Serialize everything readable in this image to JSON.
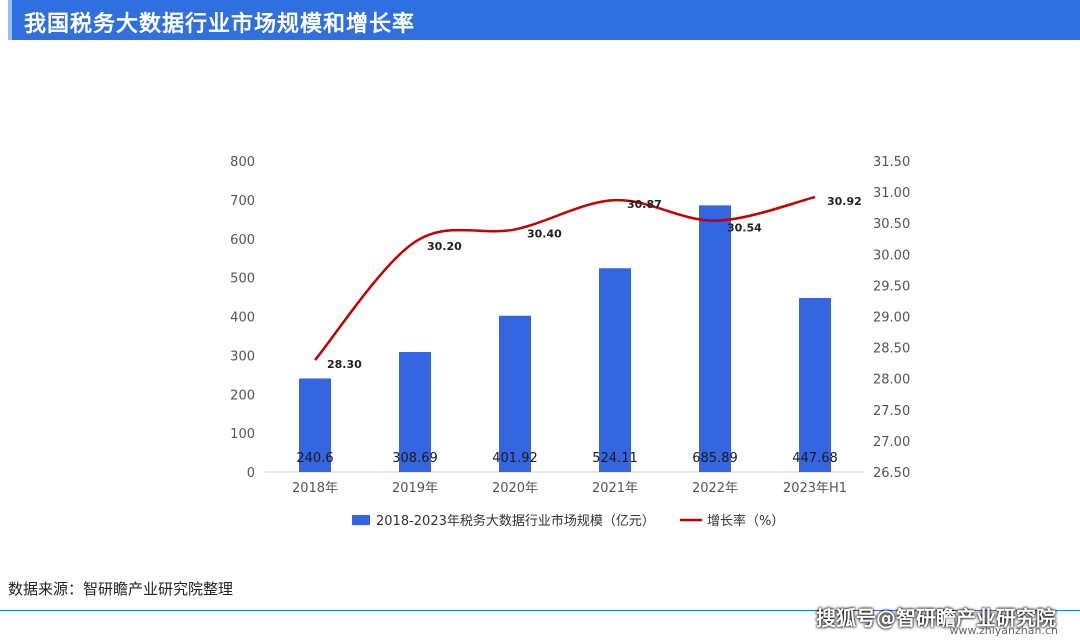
{
  "header": {
    "title": "我国税务大数据行业市场规模和增长率"
  },
  "footer": {
    "source": "数据来源：智研瞻产业研究院整理",
    "credit": "搜狐号@智研瞻产业研究院",
    "domain": "www.zhiyanzhan.cn"
  },
  "colors": {
    "bar": "#3366e0",
    "line": "#c00000",
    "header": "#2f6fe0"
  },
  "chart_data": {
    "type": "bar",
    "title": "",
    "xlabel": "",
    "ylabel": "",
    "categories": [
      "2018年",
      "2019年",
      "2020年",
      "2021年",
      "2022年",
      "2023年H1"
    ],
    "series": [
      {
        "name": "2018-2023年税务大数据行业市场规模（亿元）",
        "type": "bar",
        "axis": "left",
        "values": [
          240.6,
          308.69,
          401.92,
          524.11,
          685.89,
          447.68
        ],
        "value_labels": [
          "240.6",
          "308.69",
          "401.92",
          "524.11",
          "685.89",
          "447.68"
        ]
      },
      {
        "name": "增长率（%）",
        "type": "line",
        "axis": "right",
        "values": [
          28.3,
          30.2,
          30.4,
          30.87,
          30.54,
          30.92
        ],
        "value_labels": [
          "28.30",
          "30.20",
          "30.40",
          "30.87",
          "30.54",
          "30.92"
        ]
      }
    ],
    "ylim": [
      0,
      800
    ],
    "y_ticks": [
      "0",
      "100",
      "200",
      "300",
      "400",
      "500",
      "600",
      "700",
      "800"
    ],
    "y2lim": [
      26.5,
      31.5
    ],
    "y2_ticks": [
      "26.50",
      "27.00",
      "27.50",
      "28.00",
      "28.50",
      "29.00",
      "29.50",
      "30.00",
      "30.50",
      "31.00",
      "31.50"
    ],
    "grid": false,
    "legend": "bottom"
  }
}
